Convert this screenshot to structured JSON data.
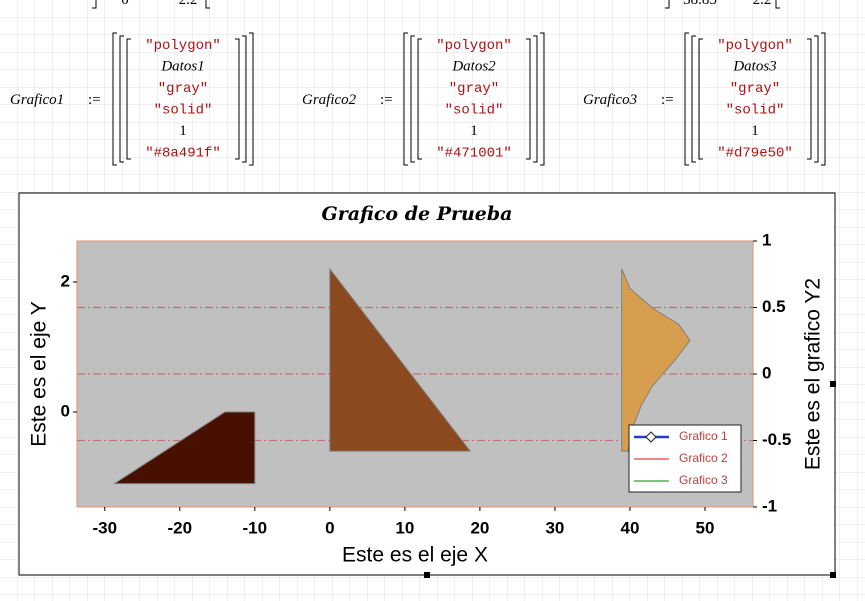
{
  "top_fragments": [
    {
      "text": "0"
    },
    {
      "text": "2.2"
    },
    {
      "text": "38.85"
    },
    {
      "text": "2.2"
    }
  ],
  "definitions": [
    {
      "name": "Grafico1",
      "operator": ":=",
      "items": [
        "\"polygon\"",
        "Datos1",
        "\"gray\"",
        "\"solid\"",
        1,
        "\"#8a491f\""
      ]
    },
    {
      "name": "Grafico2",
      "operator": ":=",
      "items": [
        "\"polygon\"",
        "Datos2",
        "\"gray\"",
        "\"solid\"",
        1,
        "\"#471001\""
      ]
    },
    {
      "name": "Grafico3",
      "operator": ":=",
      "items": [
        "\"polygon\"",
        "Datos3",
        "\"gray\"",
        "\"solid\"",
        1,
        "\"#d79e50\""
      ]
    }
  ],
  "chart_data": {
    "type": "polygon",
    "title": "Grafico de Prueba",
    "x_label": "Este es el eje X",
    "y_label": "Este es el eje Y",
    "y2_label": "Este es el grafico Y2",
    "xlim": [
      -33.7,
      56.4
    ],
    "xticks": [
      -30,
      -20,
      -10,
      0,
      10,
      20,
      30,
      40,
      50
    ],
    "ylim": [
      -1.46,
      2.63
    ],
    "yticks": [
      0,
      2
    ],
    "y2lim": [
      -1,
      1
    ],
    "y2ticks": [
      -1,
      -0.5,
      0,
      0.5,
      1
    ],
    "grid": true,
    "grid_axis": "y2",
    "background": "#c0c0c0",
    "legend": "bottom-right",
    "series": [
      {
        "name": "Grafico 1",
        "color": "#8a491f",
        "legend_color": "#2040d0",
        "marker": "diamond",
        "x": [
          0,
          0,
          18.7
        ],
        "values": [
          2.2,
          -0.6,
          -0.6
        ]
      },
      {
        "name": "Grafico 2",
        "color": "#471001",
        "legend_color": "#e04040",
        "x": [
          -28.7,
          -14,
          -10,
          -10
        ],
        "values": [
          -1.1,
          0,
          0,
          -1.1
        ]
      },
      {
        "name": "Grafico 3",
        "color": "#d79e50",
        "legend_color": "#30a030",
        "x": [
          38.9,
          40,
          43,
          46.5,
          48,
          46,
          43,
          41.5,
          40.5,
          39.7,
          38.9
        ],
        "values": [
          2.2,
          1.9,
          1.6,
          1.35,
          1.1,
          0.8,
          0.4,
          0.1,
          -0.2,
          -0.6,
          -0.6
        ]
      }
    ]
  }
}
